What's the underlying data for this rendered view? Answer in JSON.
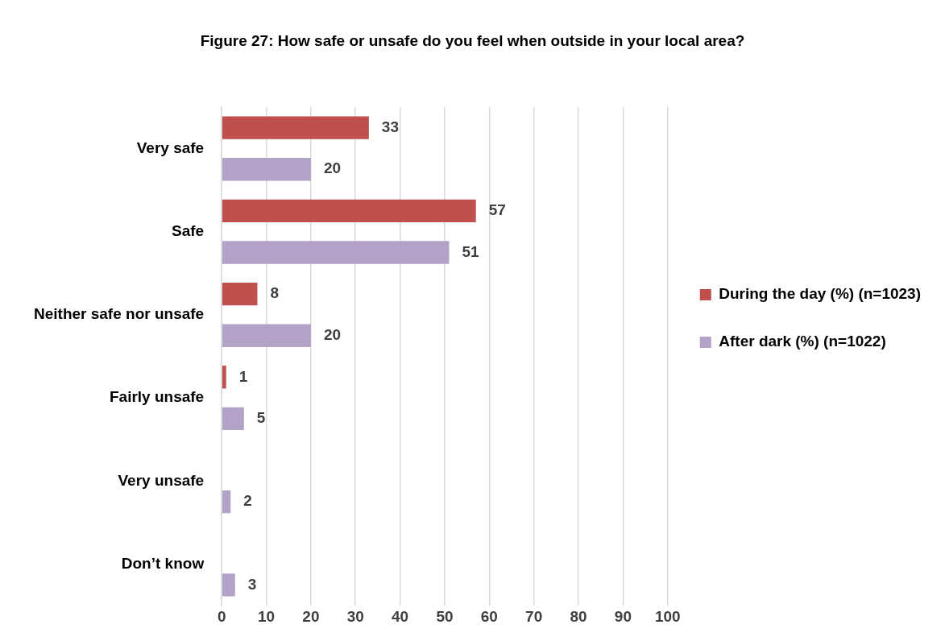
{
  "chart_data": {
    "type": "bar",
    "orientation": "horizontal",
    "title": "Figure 27: How safe or unsafe do you feel when outside in your local area?",
    "categories": [
      "Very safe",
      "Safe",
      "Neither safe nor unsafe",
      "Fairly unsafe",
      "Very unsafe",
      "Don’t know"
    ],
    "series": [
      {
        "name": "During the day (%) (n=1023)",
        "color": "#c0504d",
        "values": [
          33,
          57,
          8,
          1,
          null,
          null
        ]
      },
      {
        "name": "After dark (%) (n=1022)",
        "color": "#b3a2c7",
        "values": [
          20,
          51,
          20,
          5,
          2,
          3
        ]
      }
    ],
    "xlim": [
      0,
      100
    ],
    "xticks": [
      0,
      10,
      20,
      30,
      40,
      50,
      60,
      70,
      80,
      90,
      100
    ],
    "grid": "x",
    "legend": "right",
    "data_labels": true
  }
}
